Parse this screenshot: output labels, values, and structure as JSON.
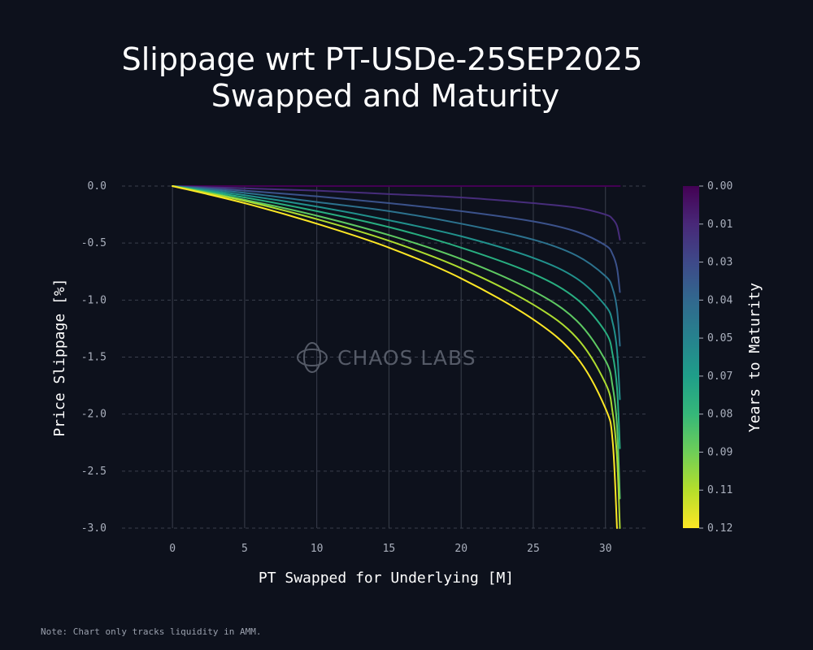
{
  "chart_data": {
    "type": "line",
    "title_lines": [
      "Slippage wrt PT-USDe-25SEP2025",
      "Swapped and Maturity"
    ],
    "xlabel": "PT Swapped for Underlying [M]",
    "ylabel": "Price Slippage [%]",
    "xlim": [
      -3.5,
      33
    ],
    "ylim": [
      -3.0,
      0.0
    ],
    "xticks": [
      0,
      5,
      10,
      15,
      20,
      25,
      30
    ],
    "yticks": [
      0.0,
      -0.5,
      -1.0,
      -1.5,
      -2.0,
      -2.5,
      -3.0
    ],
    "grid": true,
    "colorbar": {
      "label": "Years to Maturity",
      "ticks": [
        "0.00",
        "0.01",
        "0.03",
        "0.04",
        "0.05",
        "0.07",
        "0.08",
        "0.09",
        "0.11",
        "0.12"
      ],
      "range": [
        0.0,
        0.12
      ],
      "colors": [
        "#440154",
        "#482878",
        "#3e4989",
        "#31688e",
        "#26828e",
        "#1f9e89",
        "#35b779",
        "#6ece58",
        "#b5de2b",
        "#fde725"
      ]
    },
    "x_max": 31,
    "series": [
      {
        "name": "0.000",
        "color": "#440154",
        "x": [
          0,
          5,
          10,
          15,
          20,
          25,
          28,
          30,
          31
        ],
        "y": [
          0,
          0,
          0,
          0,
          0,
          0,
          0,
          0,
          0
        ]
      },
      {
        "name": "0.013",
        "color": "#472d7b",
        "x": [
          0,
          5,
          10,
          15,
          20,
          25,
          28,
          30,
          30.5,
          30.8,
          31
        ],
        "y": [
          0,
          -0.02,
          -0.04,
          -0.07,
          -0.1,
          -0.15,
          -0.19,
          -0.25,
          -0.29,
          -0.35,
          -0.47
        ]
      },
      {
        "name": "0.027",
        "color": "#3b528b",
        "x": [
          0,
          5,
          10,
          15,
          20,
          25,
          28,
          30,
          30.5,
          30.8,
          31
        ],
        "y": [
          0,
          -0.04,
          -0.09,
          -0.15,
          -0.22,
          -0.31,
          -0.4,
          -0.52,
          -0.6,
          -0.72,
          -0.93
        ]
      },
      {
        "name": "0.040",
        "color": "#2c728e",
        "x": [
          0,
          5,
          10,
          15,
          20,
          25,
          28,
          30,
          30.5,
          30.8,
          31
        ],
        "y": [
          0,
          -0.06,
          -0.14,
          -0.22,
          -0.33,
          -0.47,
          -0.61,
          -0.79,
          -0.9,
          -1.08,
          -1.4
        ]
      },
      {
        "name": "0.053",
        "color": "#21918c",
        "x": [
          0,
          5,
          10,
          15,
          20,
          25,
          28,
          30,
          30.5,
          30.8,
          31
        ],
        "y": [
          0,
          -0.08,
          -0.18,
          -0.3,
          -0.44,
          -0.63,
          -0.81,
          -1.05,
          -1.2,
          -1.44,
          -1.87
        ]
      },
      {
        "name": "0.067",
        "color": "#28ae80",
        "x": [
          0,
          5,
          10,
          15,
          20,
          25,
          28,
          30,
          30.5,
          30.8,
          31
        ],
        "y": [
          0,
          -0.1,
          -0.22,
          -0.36,
          -0.54,
          -0.77,
          -0.99,
          -1.28,
          -1.48,
          -1.77,
          -2.3
        ]
      },
      {
        "name": "0.080",
        "color": "#5ec962",
        "x": [
          0,
          5,
          10,
          15,
          20,
          25,
          28,
          30,
          30.5,
          30.8,
          31
        ],
        "y": [
          0,
          -0.12,
          -0.26,
          -0.43,
          -0.64,
          -0.92,
          -1.18,
          -1.53,
          -1.76,
          -2.1,
          -2.74
        ]
      },
      {
        "name": "0.093",
        "color": "#addc30",
        "x": [
          0,
          5,
          10,
          15,
          20,
          25,
          28,
          30,
          30.5,
          30.8,
          31
        ],
        "y": [
          0,
          -0.13,
          -0.29,
          -0.48,
          -0.72,
          -1.04,
          -1.33,
          -1.73,
          -1.99,
          -2.38,
          -3.0
        ]
      },
      {
        "name": "0.107",
        "color": "#fde725",
        "x": [
          0,
          5,
          10,
          15,
          20,
          25,
          28,
          30,
          30.5,
          30.8
        ],
        "y": [
          0,
          -0.15,
          -0.33,
          -0.54,
          -0.81,
          -1.17,
          -1.5,
          -1.95,
          -2.24,
          -3.0
        ]
      }
    ],
    "watermark": "CHAOS LABS",
    "note": "Note: Chart only tracks liquidity in AMM."
  }
}
